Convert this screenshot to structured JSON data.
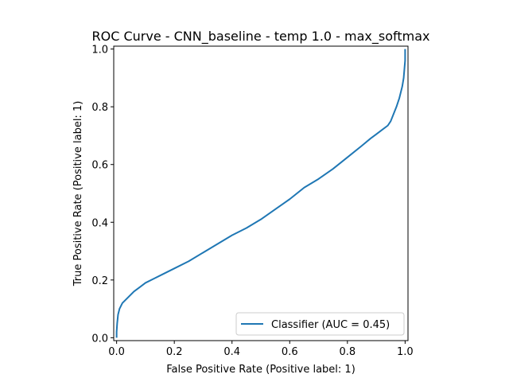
{
  "chart_data": {
    "type": "line",
    "title": "ROC Curve - CNN_baseline - temp 1.0 - max_softmax",
    "xlabel": "False Positive Rate (Positive label: 1)",
    "ylabel": "True Positive Rate (Positive label: 1)",
    "xlim": [
      -0.01,
      1.01
    ],
    "ylim": [
      -0.01,
      1.01
    ],
    "xticks": [
      0.0,
      0.2,
      0.4,
      0.6,
      0.8,
      1.0
    ],
    "yticks": [
      0.0,
      0.2,
      0.4,
      0.6,
      0.8,
      1.0
    ],
    "xtick_labels": [
      "0.0",
      "0.2",
      "0.4",
      "0.6",
      "0.8",
      "1.0"
    ],
    "ytick_labels": [
      "0.0",
      "0.2",
      "0.4",
      "0.6",
      "0.8",
      "1.0"
    ],
    "grid": false,
    "legend_position": "lower-right",
    "series": [
      {
        "name": "Classifier (AUC = 0.45)",
        "color": "#1f77b4",
        "x": [
          0.0,
          0.0,
          0.002,
          0.005,
          0.01,
          0.02,
          0.04,
          0.06,
          0.08,
          0.1,
          0.13,
          0.16,
          0.2,
          0.25,
          0.3,
          0.35,
          0.4,
          0.45,
          0.5,
          0.55,
          0.6,
          0.65,
          0.7,
          0.75,
          0.8,
          0.85,
          0.88,
          0.9,
          0.92,
          0.94,
          0.95,
          0.96,
          0.97,
          0.98,
          0.99,
          0.995,
          1.0,
          1.0
        ],
        "y": [
          0.0,
          0.02,
          0.05,
          0.08,
          0.1,
          0.12,
          0.14,
          0.16,
          0.175,
          0.19,
          0.205,
          0.22,
          0.24,
          0.265,
          0.295,
          0.325,
          0.355,
          0.38,
          0.41,
          0.445,
          0.48,
          0.52,
          0.55,
          0.585,
          0.625,
          0.665,
          0.69,
          0.705,
          0.72,
          0.735,
          0.75,
          0.775,
          0.8,
          0.83,
          0.87,
          0.9,
          0.96,
          1.0
        ]
      }
    ]
  }
}
